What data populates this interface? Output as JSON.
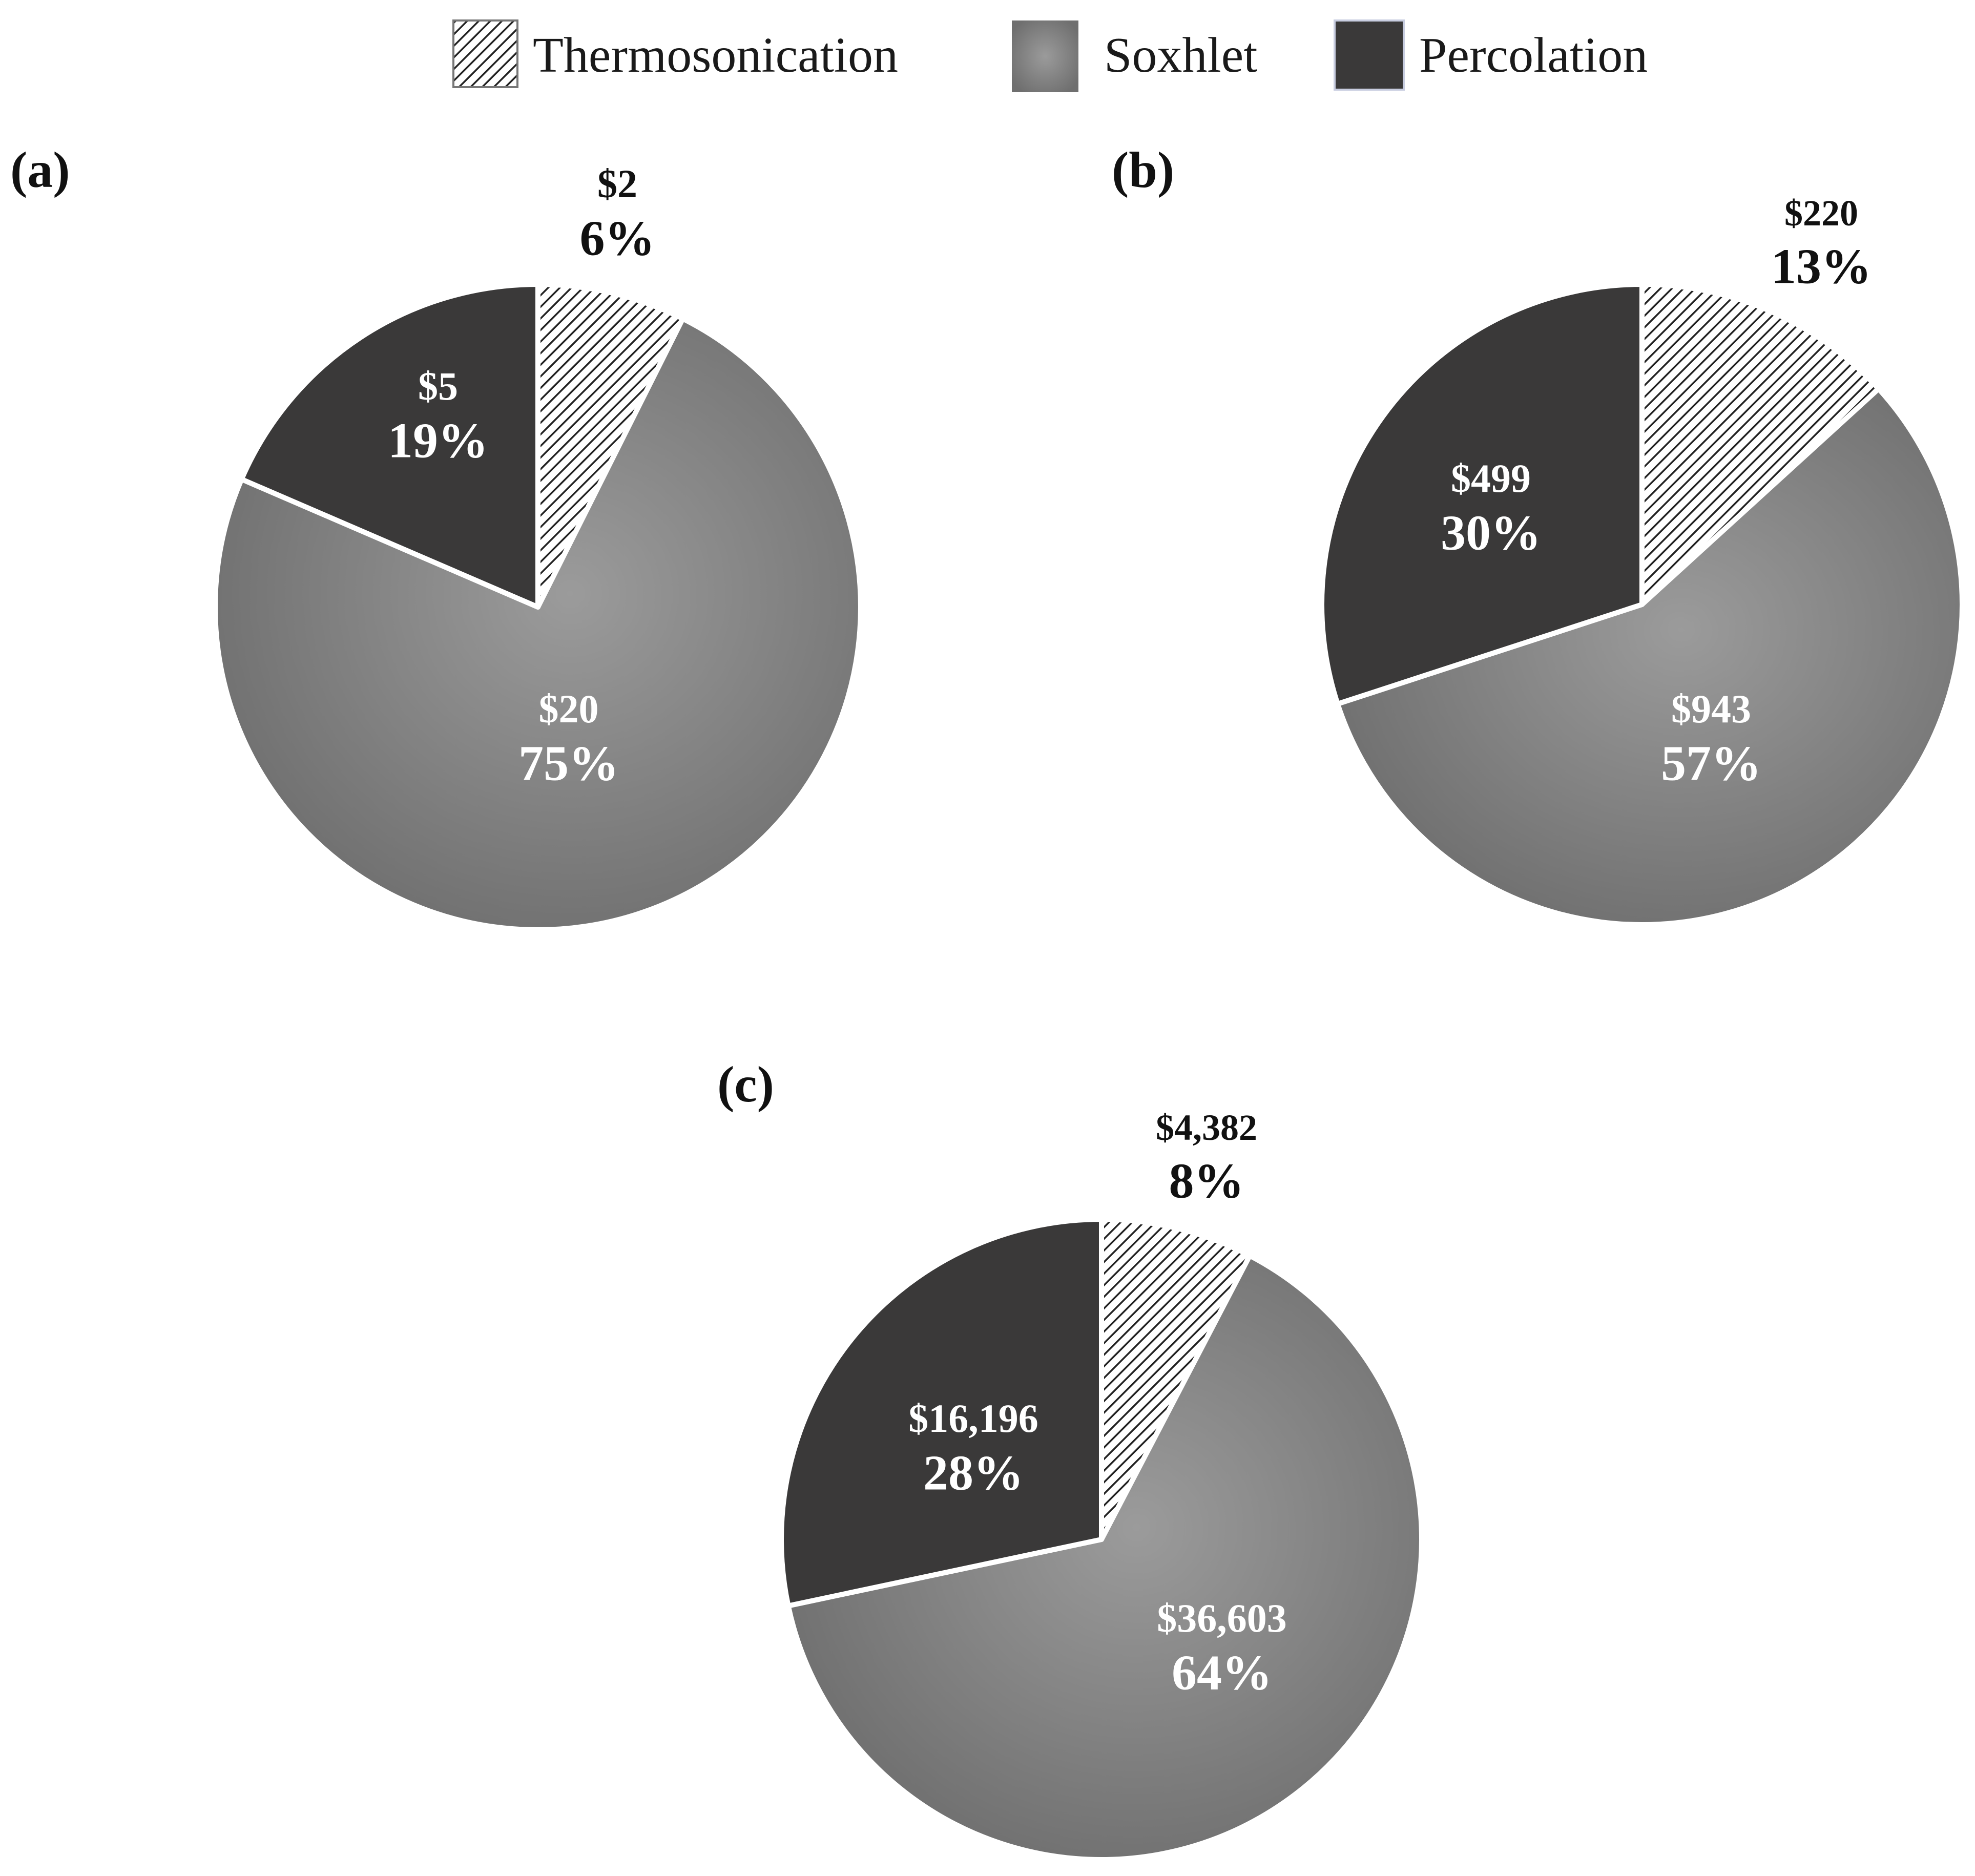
{
  "legend": [
    {
      "label": "Thermosonication",
      "style": "hatch"
    },
    {
      "label": "Soxhlet",
      "style": "gradient"
    },
    {
      "label": "Percolation",
      "style": "dark"
    }
  ],
  "colors": {
    "percolation": "#3a3939",
    "soxhlet_light": "#9b9b9b",
    "soxhlet_dark": "#6f6f6f",
    "hatch_line": "#222222",
    "outline": "#ffffff",
    "text_dark": "#111111",
    "text_light": "#ffffff"
  },
  "chart_data": [
    {
      "type": "pie",
      "panel_label": "(a)",
      "series": [
        {
          "name": "Thermosonication",
          "value_text": "$2",
          "value": 2,
          "percent_text": "6%",
          "percent": 6
        },
        {
          "name": "Soxhlet",
          "value_text": "$20",
          "value": 20,
          "percent_text": "75%",
          "percent": 75
        },
        {
          "name": "Percolation",
          "value_text": "$5",
          "value": 5,
          "percent_text": "19%",
          "percent": 19
        }
      ]
    },
    {
      "type": "pie",
      "panel_label": "(b)",
      "series": [
        {
          "name": "Thermosonication",
          "value_text": "$220",
          "value": 220,
          "percent_text": "13%",
          "percent": 13
        },
        {
          "name": "Soxhlet",
          "value_text": "$943",
          "value": 943,
          "percent_text": "57%",
          "percent": 57
        },
        {
          "name": "Percolation",
          "value_text": "$499",
          "value": 499,
          "percent_text": "30%",
          "percent": 30
        }
      ]
    },
    {
      "type": "pie",
      "panel_label": "(c)",
      "series": [
        {
          "name": "Thermosonication",
          "value_text": "$4,382",
          "value": 4382,
          "percent_text": "8%",
          "percent": 8
        },
        {
          "name": "Soxhlet",
          "value_text": "$36,603",
          "value": 36603,
          "percent_text": "64%",
          "percent": 64
        },
        {
          "name": "Percolation",
          "value_text": "$16,196",
          "value": 16196,
          "percent_text": "28%",
          "percent": 28
        }
      ]
    }
  ]
}
